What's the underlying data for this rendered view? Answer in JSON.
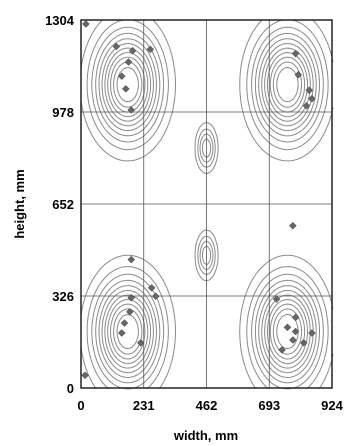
{
  "chart_data": {
    "type": "contour",
    "xlabel": "width, mm",
    "ylabel": "height, mm",
    "xlim": [
      0,
      924
    ],
    "ylim": [
      0,
      1304
    ],
    "x_ticks": [
      "0",
      "231",
      "462",
      "693",
      "924"
    ],
    "y_ticks": [
      "0",
      "326",
      "652",
      "978",
      "1304"
    ],
    "grid": true,
    "contour_color": "#8a8a8a",
    "marker_color": "#666666",
    "peaks": [
      {
        "x": 172,
        "y": 1075
      },
      {
        "x": 760,
        "y": 1075
      },
      {
        "x": 172,
        "y": 200
      },
      {
        "x": 760,
        "y": 200
      }
    ],
    "saddles": [
      {
        "x": 462,
        "y": 850
      },
      {
        "x": 462,
        "y": 470
      }
    ],
    "points": [
      {
        "x": 18,
        "y": 1290
      },
      {
        "x": 130,
        "y": 1210
      },
      {
        "x": 190,
        "y": 1195
      },
      {
        "x": 255,
        "y": 1200
      },
      {
        "x": 175,
        "y": 1155
      },
      {
        "x": 150,
        "y": 1105
      },
      {
        "x": 165,
        "y": 1060
      },
      {
        "x": 185,
        "y": 985
      },
      {
        "x": 790,
        "y": 1185
      },
      {
        "x": 800,
        "y": 1110
      },
      {
        "x": 840,
        "y": 1055
      },
      {
        "x": 850,
        "y": 1025
      },
      {
        "x": 830,
        "y": 1000
      },
      {
        "x": 780,
        "y": 575
      },
      {
        "x": 185,
        "y": 455
      },
      {
        "x": 260,
        "y": 355
      },
      {
        "x": 275,
        "y": 325
      },
      {
        "x": 185,
        "y": 320
      },
      {
        "x": 180,
        "y": 270
      },
      {
        "x": 160,
        "y": 230
      },
      {
        "x": 150,
        "y": 195
      },
      {
        "x": 220,
        "y": 160
      },
      {
        "x": 720,
        "y": 315
      },
      {
        "x": 790,
        "y": 250
      },
      {
        "x": 760,
        "y": 215
      },
      {
        "x": 790,
        "y": 200
      },
      {
        "x": 780,
        "y": 170
      },
      {
        "x": 820,
        "y": 160
      },
      {
        "x": 740,
        "y": 135
      },
      {
        "x": 850,
        "y": 195
      },
      {
        "x": 15,
        "y": 45
      }
    ]
  }
}
